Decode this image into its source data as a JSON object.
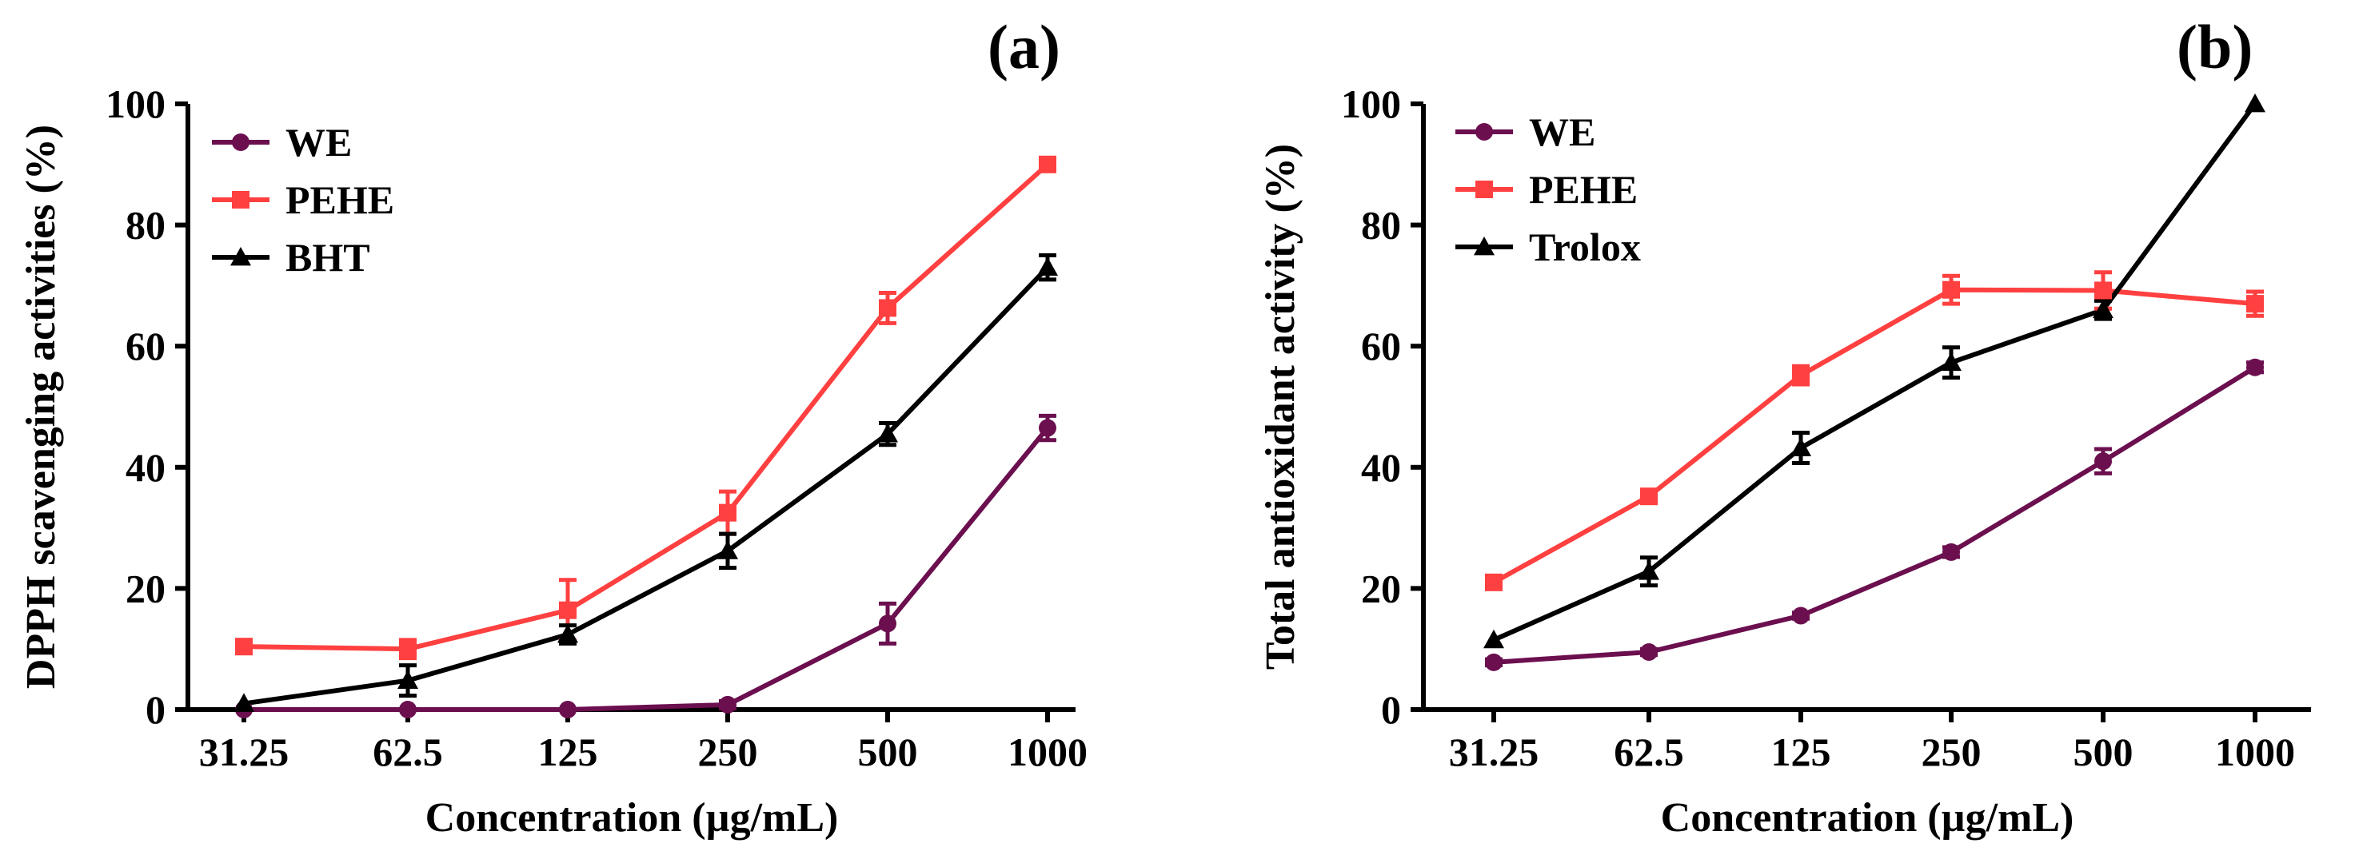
{
  "chart_data": [
    {
      "type": "line",
      "panel_label": "(a)",
      "categories": [
        "31.25",
        "62.5",
        "125",
        "250",
        "500",
        "1000"
      ],
      "xlabel": "Concentration (µg/mL)",
      "ylabel": "DPPH scavenging activities (%)",
      "ylim": [
        0,
        100
      ],
      "yticks": [
        "0",
        "20",
        "40",
        "60",
        "80",
        "100"
      ],
      "legend_position": "top-left",
      "series": [
        {
          "name": "WE",
          "marker": "circle",
          "color": "#6b0f4f",
          "values": [
            0.0,
            0.0,
            0.0,
            0.8,
            14.2,
            46.5
          ],
          "errors": [
            0,
            0,
            0,
            0.6,
            3.3,
            2.0
          ]
        },
        {
          "name": "PEHE",
          "marker": "square",
          "color": "#ff4040",
          "values": [
            10.4,
            10.0,
            16.4,
            32.5,
            66.3,
            90.0
          ],
          "errors": [
            0.5,
            1.5,
            5.0,
            3.5,
            2.5,
            0.5
          ]
        },
        {
          "name": "BHT",
          "marker": "triangle",
          "color": "#000000",
          "values": [
            1.0,
            4.8,
            12.4,
            26.2,
            45.5,
            73.0
          ],
          "errors": [
            0.3,
            2.5,
            1.5,
            2.8,
            1.8,
            2.0
          ]
        }
      ]
    },
    {
      "type": "line",
      "panel_label": "(b)",
      "categories": [
        "31.25",
        "62.5",
        "125",
        "250",
        "500",
        "1000"
      ],
      "xlabel": "Concentration (µg/mL)",
      "ylabel": "Total antioxidant activity (%)",
      "ylim": [
        0,
        100
      ],
      "yticks": [
        "0",
        "20",
        "40",
        "60",
        "80",
        "100"
      ],
      "legend_position": "top-left",
      "series": [
        {
          "name": "WE",
          "marker": "circle",
          "color": "#6b0f4f",
          "values": [
            7.8,
            9.5,
            15.5,
            26.0,
            41.0,
            56.5
          ],
          "errors": [
            0.5,
            0.5,
            0.5,
            0.8,
            2.0,
            0.8
          ]
        },
        {
          "name": "PEHE",
          "marker": "square",
          "color": "#ff4040",
          "values": [
            21.0,
            35.2,
            55.2,
            69.3,
            69.2,
            67.0
          ],
          "errors": [
            0.5,
            0.8,
            1.5,
            2.3,
            3.0,
            2.0
          ]
        },
        {
          "name": "Trolox",
          "marker": "triangle",
          "color": "#000000",
          "values": [
            11.5,
            22.8,
            43.2,
            57.3,
            66.0,
            100.0
          ],
          "errors": [
            0.3,
            2.3,
            2.5,
            2.5,
            1.5,
            0.3
          ]
        }
      ]
    }
  ]
}
